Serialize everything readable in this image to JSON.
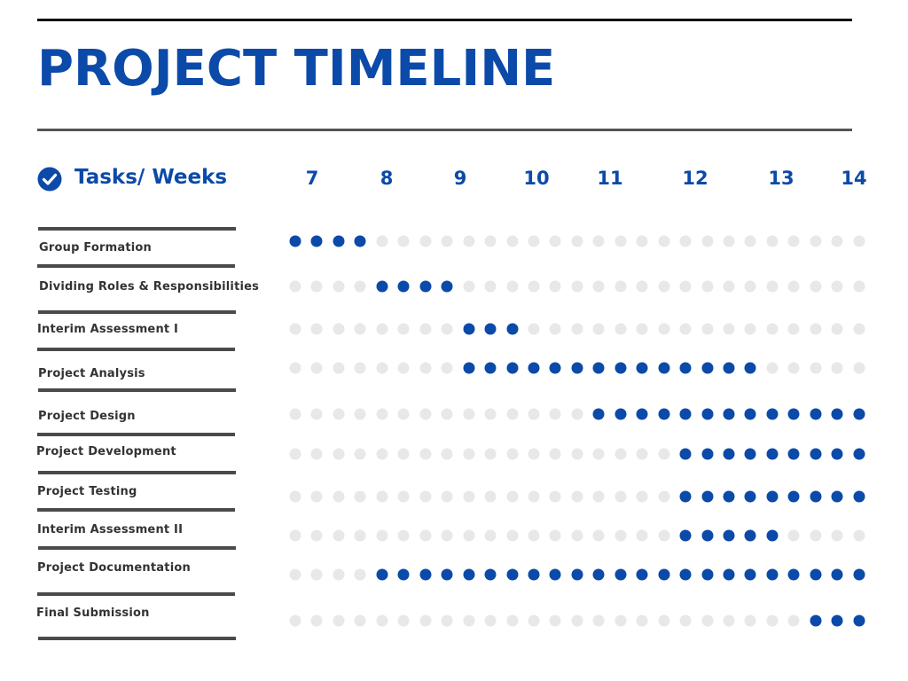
{
  "title": "PROJECT TIMELINE",
  "header": {
    "tasks_label": "Tasks/ Weeks",
    "icon": "check-circle-icon"
  },
  "colors": {
    "accent": "#0b4aa8",
    "inactive": "#e8e8e8",
    "line": "#4a4a4a"
  },
  "chart_data": {
    "type": "table",
    "weeks": [
      "7",
      "8",
      "9",
      "10",
      "11",
      "12",
      "13",
      "14"
    ],
    "slots_per_row": 27,
    "tasks": [
      {
        "name": "Group Formation",
        "active": [
          0,
          3
        ]
      },
      {
        "name": "Dividing Roles & Responsibilities",
        "active": [
          4,
          7
        ]
      },
      {
        "name": "Interim Assessment I",
        "active": [
          8,
          10
        ]
      },
      {
        "name": "Project Analysis",
        "active": [
          8,
          21
        ]
      },
      {
        "name": "Project Design",
        "active": [
          14,
          26
        ]
      },
      {
        "name": "Project Development",
        "active": [
          18,
          26
        ]
      },
      {
        "name": "Project Testing",
        "active": [
          18,
          26
        ]
      },
      {
        "name": "Interim Assessment II",
        "active": [
          18,
          22
        ]
      },
      {
        "name": "Project Documentation",
        "active": [
          4,
          26
        ]
      },
      {
        "name": "Final Submission",
        "active": [
          24,
          26
        ]
      }
    ]
  }
}
